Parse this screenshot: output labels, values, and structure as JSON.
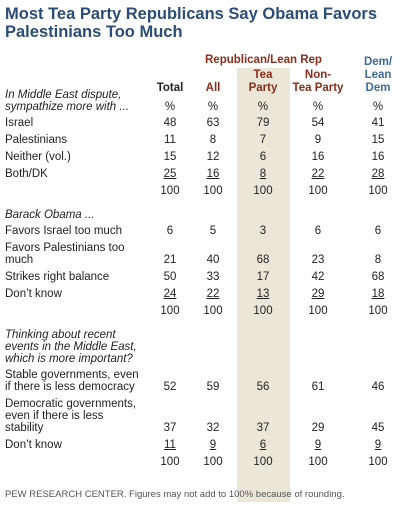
{
  "title": "Most Tea Party Republicans Say Obama Favors Palestinians Too Much",
  "group_header": "Republican/Lean Rep",
  "columns": [
    [
      "Total"
    ],
    [
      "All"
    ],
    [
      "Tea",
      "Party"
    ],
    [
      "Non-",
      "Tea Party"
    ],
    [
      "Dem/",
      "Lean",
      "Dem"
    ]
  ],
  "sections": [
    {
      "prompt": [
        "In Middle East dispute,",
        "sympathize more with ..."
      ],
      "units": [
        "%",
        "%",
        "%",
        "%",
        "%"
      ],
      "rows": [
        {
          "label": [
            "Israel"
          ],
          "values": [
            48,
            63,
            79,
            54,
            41
          ]
        },
        {
          "label": [
            "Palestinians"
          ],
          "values": [
            11,
            8,
            7,
            9,
            15
          ]
        },
        {
          "label": [
            "Neither (vol.)"
          ],
          "values": [
            15,
            12,
            6,
            16,
            16
          ]
        },
        {
          "label": [
            "Both/DK"
          ],
          "values": [
            25,
            16,
            8,
            22,
            28
          ]
        }
      ],
      "totals": [
        100,
        100,
        100,
        100,
        100
      ]
    },
    {
      "prompt": [
        "Barack Obama ..."
      ],
      "rows": [
        {
          "label": [
            "Favors Israel too much"
          ],
          "values": [
            6,
            5,
            3,
            6,
            6
          ]
        },
        {
          "label": [
            "Favors Palestinians too",
            "much"
          ],
          "values": [
            21,
            40,
            68,
            23,
            8
          ]
        },
        {
          "label": [
            "Strikes right balance"
          ],
          "values": [
            50,
            33,
            17,
            42,
            68
          ]
        },
        {
          "label": [
            "Don’t know"
          ],
          "values": [
            24,
            22,
            13,
            29,
            18
          ]
        }
      ],
      "totals": [
        100,
        100,
        100,
        100,
        100
      ]
    },
    {
      "prompt": [
        "Thinking about recent",
        "events in the Middle East,",
        "which is more important?"
      ],
      "rows": [
        {
          "label": [
            "Stable governments, even",
            "if there is less democracy"
          ],
          "values": [
            52,
            59,
            56,
            61,
            46
          ]
        },
        {
          "label": [
            "Democratic governments,",
            "even if there is less",
            "stability"
          ],
          "values": [
            37,
            32,
            37,
            29,
            45
          ]
        },
        {
          "label": [
            "Don’t know"
          ],
          "values": [
            11,
            9,
            6,
            9,
            9
          ]
        }
      ],
      "totals": [
        100,
        100,
        100,
        100,
        100
      ]
    }
  ],
  "footer": "PEW RESEARCH CENTER. Figures may not add to 100% because of rounding."
}
